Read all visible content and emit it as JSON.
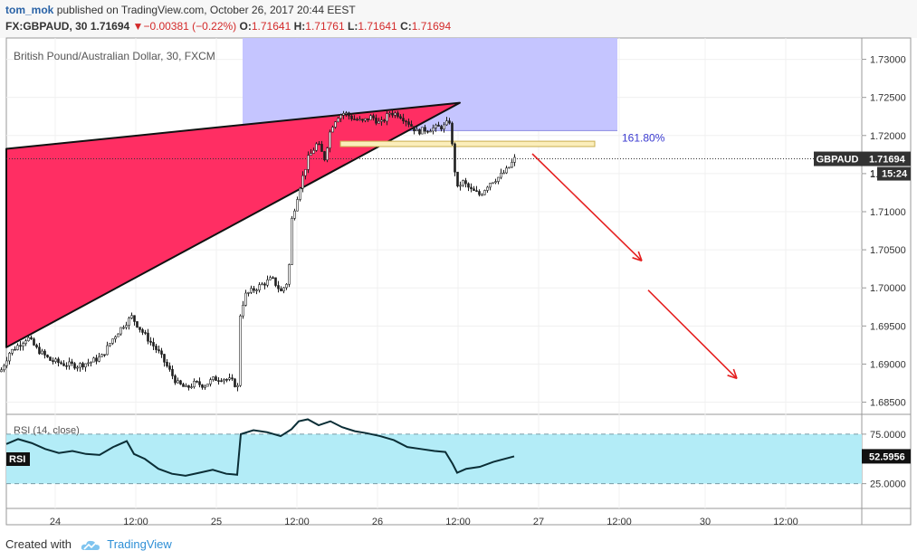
{
  "header": {
    "author": "tom_mok",
    "published_text": "published on TradingView.com, October 26, 2017 20:44 EEST",
    "symbol": "FX:GBPAUD, 30",
    "last": "1.71694",
    "change_arrow": "▼",
    "change": "−0.00381 (−0.22%)",
    "o_label": "O:",
    "o_value": "1.71641",
    "h_label": "H:",
    "h_value": "1.71761",
    "l_label": "L:",
    "l_value": "1.71641",
    "c_label": "C:",
    "c_value": "1.71694"
  },
  "chart_data": [
    {
      "type": "candlestick",
      "title": "British Pound/Australian Dollar, 30, FXCM",
      "x_ticks": [
        "24",
        "12:00",
        "25",
        "12:00",
        "26",
        "12:00",
        "27",
        "12:00",
        "30",
        "12:00"
      ],
      "y_ticks": [
        "1.73000",
        "1.72500",
        "1.72000",
        "1.71500",
        "1.71000",
        "1.70500",
        "1.70000",
        "1.69500",
        "1.69000",
        "1.68500"
      ],
      "ylim": [
        1.6834,
        1.7328
      ],
      "price_path": [
        [
          0,
          1.689
        ],
        [
          10,
          1.6915
        ],
        [
          20,
          1.6925
        ],
        [
          30,
          1.6935
        ],
        [
          40,
          1.692
        ],
        [
          55,
          1.6905
        ],
        [
          70,
          1.69
        ],
        [
          85,
          1.6898
        ],
        [
          100,
          1.6903
        ],
        [
          112,
          1.691
        ],
        [
          125,
          1.6935
        ],
        [
          135,
          1.695
        ],
        [
          145,
          1.6962
        ],
        [
          155,
          1.6945
        ],
        [
          165,
          1.693
        ],
        [
          175,
          1.6915
        ],
        [
          185,
          1.6895
        ],
        [
          195,
          1.6875
        ],
        [
          205,
          1.6868
        ],
        [
          215,
          1.6875
        ],
        [
          225,
          1.6872
        ],
        [
          235,
          1.688
        ],
        [
          245,
          1.6882
        ],
        [
          255,
          1.6878
        ],
        [
          262,
          1.687
        ],
        [
          264,
          1.696
        ],
        [
          270,
          1.699
        ],
        [
          280,
          1.6998
        ],
        [
          290,
          1.7005
        ],
        [
          300,
          1.7012
        ],
        [
          310,
          1.6995
        ],
        [
          318,
          1.701
        ],
        [
          322,
          1.709
        ],
        [
          330,
          1.713
        ],
        [
          340,
          1.717
        ],
        [
          350,
          1.719
        ],
        [
          358,
          1.717
        ],
        [
          365,
          1.721
        ],
        [
          372,
          1.7225
        ],
        [
          380,
          1.723
        ],
        [
          390,
          1.7222
        ],
        [
          400,
          1.7218
        ],
        [
          410,
          1.7225
        ],
        [
          420,
          1.7215
        ],
        [
          430,
          1.723
        ],
        [
          440,
          1.7228
        ],
        [
          450,
          1.7218
        ],
        [
          460,
          1.7205
        ],
        [
          470,
          1.7208
        ],
        [
          480,
          1.721
        ],
        [
          490,
          1.7212
        ],
        [
          497,
          1.722
        ],
        [
          500,
          1.717
        ],
        [
          505,
          1.713
        ],
        [
          510,
          1.714
        ],
        [
          520,
          1.7128
        ],
        [
          530,
          1.7122
        ],
        [
          540,
          1.7138
        ],
        [
          550,
          1.7145
        ],
        [
          560,
          1.7155
        ],
        [
          568,
          1.7169
        ]
      ],
      "wedge": {
        "left": [
          7,
          1.71825,
          1.6922
        ],
        "apex": [
          508,
          1.7243
        ]
      },
      "fib_box": {
        "x1": 268,
        "x2": 682,
        "top": 1.7328,
        "bottom": 1.72065
      },
      "fib_label": "161.80%",
      "target_zone": {
        "x1": 376,
        "x2": 657,
        "top": 1.71925,
        "bottom": 1.71855
      },
      "arrows": [
        {
          "from": [
            588,
            1.7176
          ],
          "to": [
            709,
            1.70355
          ]
        },
        {
          "from": [
            716,
            1.6997
          ],
          "to": [
            814,
            1.6881
          ]
        }
      ],
      "last_price_label": "GBPAUD",
      "last_price_value": "1.71694",
      "last_price": 1.71694,
      "countdown_prefix": "1",
      "countdown": "15:24",
      "colors": {
        "wedge": "#ff2e63",
        "fib_box": "#c2c2ff",
        "target_zone": "#fbeebb",
        "arrow": "#e52121",
        "candle": "#1e1e1e"
      }
    },
    {
      "type": "line",
      "title": "RSI (14, close)",
      "badge": "RSI",
      "value_label": "52.5956",
      "y_ticks": [
        "75.0000",
        "25.0000"
      ],
      "ylim": [
        0,
        95
      ],
      "band": [
        25,
        75
      ],
      "band_color": "#b3ecf7",
      "values": [
        [
          7,
          65
        ],
        [
          20,
          70
        ],
        [
          35,
          66
        ],
        [
          50,
          60
        ],
        [
          65,
          56
        ],
        [
          80,
          58
        ],
        [
          95,
          55
        ],
        [
          110,
          54
        ],
        [
          125,
          62
        ],
        [
          140,
          68
        ],
        [
          148,
          55
        ],
        [
          160,
          50
        ],
        [
          175,
          40
        ],
        [
          190,
          35
        ],
        [
          205,
          33
        ],
        [
          220,
          36
        ],
        [
          235,
          39
        ],
        [
          250,
          35
        ],
        [
          262,
          34
        ],
        [
          266,
          75
        ],
        [
          280,
          79
        ],
        [
          295,
          77
        ],
        [
          310,
          73
        ],
        [
          322,
          80
        ],
        [
          330,
          88
        ],
        [
          340,
          90
        ],
        [
          352,
          84
        ],
        [
          365,
          88
        ],
        [
          378,
          82
        ],
        [
          392,
          78
        ],
        [
          405,
          76
        ],
        [
          420,
          73
        ],
        [
          435,
          69
        ],
        [
          450,
          62
        ],
        [
          465,
          60
        ],
        [
          480,
          58
        ],
        [
          492,
          57
        ],
        [
          500,
          45
        ],
        [
          505,
          36
        ],
        [
          515,
          40
        ],
        [
          530,
          42
        ],
        [
          545,
          47
        ],
        [
          568,
          52.6
        ]
      ]
    }
  ],
  "footer": {
    "prefix": "Created with",
    "brand": "TradingView"
  }
}
